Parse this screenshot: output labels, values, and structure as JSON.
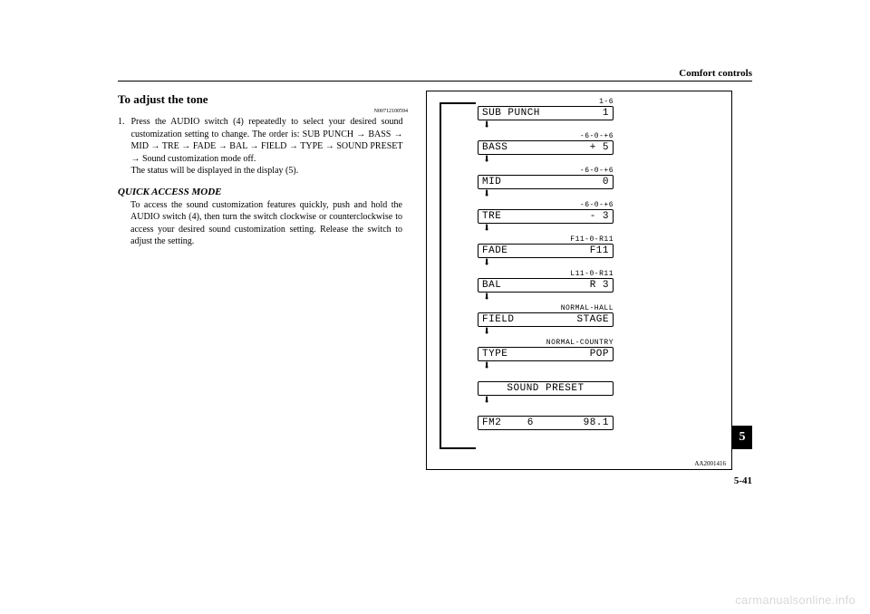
{
  "header": {
    "title": "Comfort controls"
  },
  "section": {
    "title": "To adjust the tone",
    "ref": "N00712100594",
    "step_num": "1.",
    "step_text": "Press the AUDIO switch (4) repeatedly to select your desired sound customization setting to change. The order is: SUB PUNCH → BASS → MID → TRE → FADE → BAL → FIELD → TYPE → SOUND PRESET → Sound customization mode off.",
    "step_text2": "The status will be displayed in the display (5).",
    "subheading": "QUICK ACCESS MODE",
    "sub_text": "To access the sound customization features quickly, push and hold the AUDIO switch (4), then turn the switch clockwise or counterclockwise to access your desired sound customization setting. Release the switch to adjust the setting."
  },
  "diagram": {
    "ref": "AA2001416",
    "rows": [
      {
        "range": "1-6",
        "left": "SUB PUNCH",
        "right": "1"
      },
      {
        "range": "-6-0-+6",
        "left": "BASS",
        "right": "+ 5"
      },
      {
        "range": "-6-0-+6",
        "left": "MID",
        "right": "0"
      },
      {
        "range": "-6-0-+6",
        "left": "TRE",
        "right": "- 3"
      },
      {
        "range": "F11-0-R11",
        "left": "FADE",
        "right": "F11"
      },
      {
        "range": "L11-0-R11",
        "left": "BAL",
        "right": "R 3"
      },
      {
        "range": "NORMAL-HALL",
        "left": "FIELD",
        "right": "STAGE"
      },
      {
        "range": "NORMAL-COUNTRY",
        "left": "TYPE",
        "right": "POP"
      },
      {
        "range": "",
        "single": "SOUND PRESET"
      },
      {
        "range": "",
        "left": "FM2    6",
        "right": "98.1"
      }
    ]
  },
  "tab": {
    "number": "5"
  },
  "footer": {
    "page": "5-41",
    "watermark": "carmanualsonline.info"
  }
}
